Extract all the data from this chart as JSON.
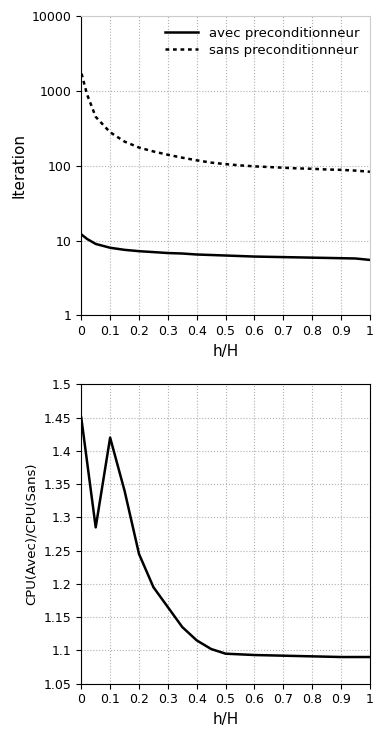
{
  "top_plot": {
    "avec_x": [
      0.001,
      0.02,
      0.05,
      0.1,
      0.15,
      0.2,
      0.25,
      0.3,
      0.35,
      0.4,
      0.45,
      0.5,
      0.55,
      0.6,
      0.65,
      0.7,
      0.75,
      0.8,
      0.85,
      0.9,
      0.95,
      1.0
    ],
    "avec_y": [
      12.0,
      10.5,
      9.0,
      8.0,
      7.5,
      7.2,
      7.0,
      6.8,
      6.7,
      6.5,
      6.4,
      6.3,
      6.2,
      6.1,
      6.05,
      6.0,
      5.95,
      5.9,
      5.85,
      5.8,
      5.75,
      5.5
    ],
    "sans_x": [
      0.001,
      0.02,
      0.05,
      0.1,
      0.15,
      0.2,
      0.25,
      0.3,
      0.35,
      0.4,
      0.45,
      0.5,
      0.55,
      0.6,
      0.65,
      0.7,
      0.75,
      0.8,
      0.85,
      0.9,
      0.95,
      1.0
    ],
    "sans_y": [
      1700,
      900,
      450,
      280,
      210,
      175,
      155,
      140,
      128,
      118,
      110,
      105,
      101,
      98,
      96,
      94,
      92,
      91,
      89,
      88,
      86,
      83
    ],
    "ylabel": "Iteration",
    "xlabel": "h/H",
    "ylim_min": 1,
    "ylim_max": 10000,
    "xlim_min": 0,
    "xlim_max": 1.0,
    "legend_avec": "avec preconditionneur",
    "legend_sans": "sans preconditionneur",
    "xticks": [
      0,
      0.1,
      0.2,
      0.3,
      0.4,
      0.5,
      0.6,
      0.7,
      0.8,
      0.9,
      1
    ],
    "xtick_labels": [
      "0",
      "0.1",
      "0.2",
      "0.3",
      "0.4",
      "0.5",
      "0.6",
      "0.7",
      "0.8",
      "0.9",
      "1"
    ]
  },
  "bottom_plot": {
    "x": [
      0.0,
      0.05,
      0.1,
      0.15,
      0.2,
      0.25,
      0.3,
      0.35,
      0.4,
      0.45,
      0.5,
      0.6,
      0.7,
      0.8,
      0.9,
      1.0
    ],
    "y": [
      1.45,
      1.285,
      1.42,
      1.34,
      1.245,
      1.195,
      1.165,
      1.135,
      1.115,
      1.102,
      1.095,
      1.093,
      1.092,
      1.091,
      1.09,
      1.09
    ],
    "ylabel": "CPU(Avec)/CPU(Sans)",
    "xlabel": "h/H",
    "ylim_min": 1.05,
    "ylim_max": 1.5,
    "xlim_min": 0,
    "xlim_max": 1.0,
    "yticks": [
      1.05,
      1.1,
      1.15,
      1.2,
      1.25,
      1.3,
      1.35,
      1.4,
      1.45,
      1.5
    ],
    "ytick_labels": [
      "1.05",
      "1.1",
      "1.15",
      "1.2",
      "1.25",
      "1.3",
      "1.35",
      "1.4",
      "1.45",
      "1.5"
    ],
    "xticks": [
      0,
      0.1,
      0.2,
      0.3,
      0.4,
      0.5,
      0.6,
      0.7,
      0.8,
      0.9,
      1
    ],
    "xtick_labels": [
      "0",
      "0.1",
      "0.2",
      "0.3",
      "0.4",
      "0.5",
      "0.6",
      "0.7",
      "0.8",
      "0.9",
      "1"
    ]
  },
  "line_color": "#000000",
  "grid_color": "#b0b0b0",
  "bg_color": "#ffffff",
  "figure_width": 3.85,
  "figure_height": 7.38,
  "dpi": 100
}
